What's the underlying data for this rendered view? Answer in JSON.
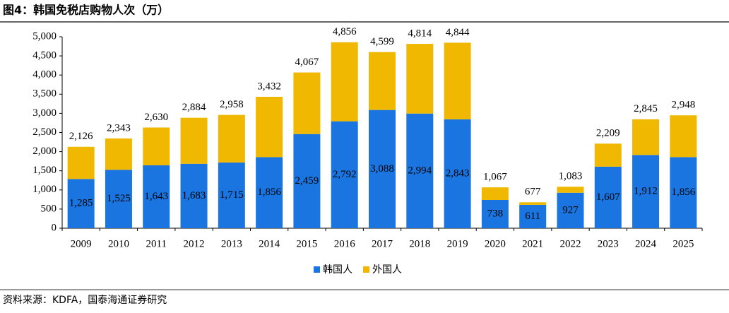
{
  "chart_data": {
    "type": "stacked-bar",
    "title": "图4：韩国免税店购物人次（万）",
    "source": "资料来源：KDFA，国泰海通证券研究",
    "categories": [
      "2009",
      "2010",
      "2011",
      "2012",
      "2013",
      "2014",
      "2015",
      "2016",
      "2017",
      "2018",
      "2019",
      "2020",
      "2021",
      "2022",
      "2023",
      "2024",
      "2025"
    ],
    "series": [
      {
        "name": "韩国人",
        "color": "#1a75e0",
        "values": [
          1285,
          1525,
          1643,
          1683,
          1715,
          1856,
          2459,
          2792,
          3088,
          2994,
          2843,
          738,
          611,
          927,
          1607,
          1912,
          1856
        ],
        "value_labels": [
          "1,285",
          "1,525",
          "1,643",
          "1,683",
          "1,715",
          "1,856",
          "2,459",
          "2,792",
          "3,088",
          "2,994",
          "2,843",
          "738",
          "611",
          "927",
          "1,607",
          "1,912",
          "1,856"
        ]
      },
      {
        "name": "外国人",
        "color": "#f0b800",
        "values": [
          841,
          818,
          987,
          1201,
          1243,
          1576,
          1608,
          2064,
          1511,
          1820,
          2001,
          329,
          66,
          156,
          602,
          933,
          1092
        ]
      }
    ],
    "totals": {
      "values": [
        2126,
        2343,
        2630,
        2884,
        2958,
        3432,
        4067,
        4856,
        4599,
        4814,
        4844,
        1067,
        677,
        1083,
        2209,
        2845,
        2948
      ],
      "value_labels": [
        "2,126",
        "2,343",
        "2,630",
        "2,884",
        "2,958",
        "3,432",
        "4,067",
        "4,856",
        "4,599",
        "4,814",
        "4,844",
        "1,067",
        "677",
        "1,083",
        "2,209",
        "2,845",
        "2,948"
      ]
    },
    "ylim": [
      0,
      5000
    ],
    "yticks": [
      0,
      500,
      {
        "value": 1000,
        "label": "1,000"
      },
      {
        "value": 1500,
        "label": "1,500"
      },
      {
        "value": 2000,
        "label": "2,000"
      },
      {
        "value": 2500,
        "label": "2,500"
      },
      {
        "value": 3000,
        "label": "3,000"
      },
      {
        "value": 3500,
        "label": "3,500"
      },
      {
        "value": 4000,
        "label": "4,000"
      },
      {
        "value": 4500,
        "label": "4,500"
      },
      {
        "value": 5000,
        "label": "5,000"
      }
    ],
    "grid": false
  }
}
